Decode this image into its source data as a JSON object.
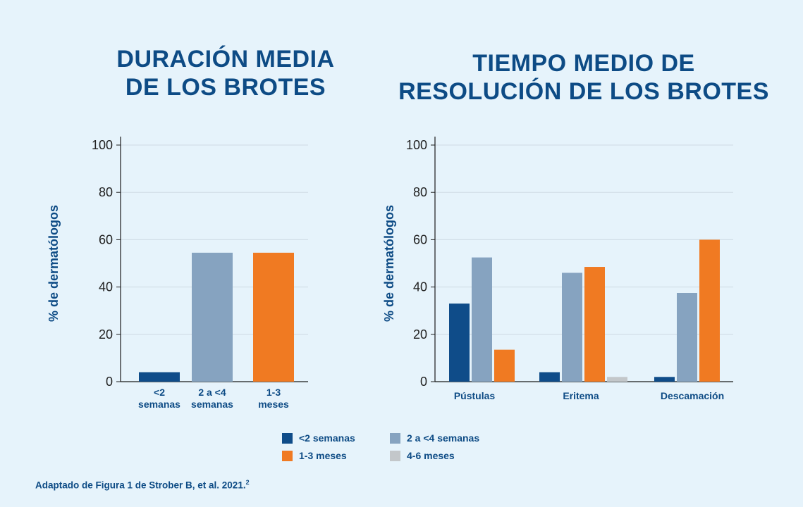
{
  "colors": {
    "background": "#e6f3fb",
    "text": "#0d4b85",
    "series": [
      "#0f4c89",
      "#86a3c0",
      "#f07a22",
      "#c3c7ca"
    ],
    "grid": "#cdd9e3",
    "axis": "#1b1b1b"
  },
  "titles": {
    "left_line1": "DURACIÓN MEDIA",
    "left_line2": "DE LOS BROTES",
    "right_line1": "TIEMPO MEDIO DE",
    "right_line2": "RESOLUCIÓN DE LOS BROTES"
  },
  "chart_data": [
    {
      "type": "bar",
      "title": "DURACIÓN MEDIA DE LOS BROTES",
      "ylabel": "% de dermatólogos",
      "ylim": [
        0,
        100
      ],
      "yticks": [
        "0",
        "20",
        "40",
        "60",
        "80",
        "100"
      ],
      "grid": true,
      "categories": [
        [
          "<2",
          "semanas"
        ],
        [
          "2 a <4",
          "semanas"
        ],
        [
          "1-3",
          "meses"
        ]
      ],
      "values": [
        4,
        54.5,
        54.5
      ]
    },
    {
      "type": "bar",
      "title": "TIEMPO MEDIO DE RESOLUCIÓN DE LOS BROTES",
      "ylabel": "% de dermatólogos",
      "ylim": [
        0,
        100
      ],
      "yticks": [
        "0",
        "20",
        "40",
        "60",
        "80",
        "100"
      ],
      "grid": true,
      "categories": [
        "Pústulas",
        "Eritema",
        "Descamación"
      ],
      "series": [
        {
          "name": "<2 semanas",
          "values": [
            33,
            4,
            2
          ]
        },
        {
          "name": "2 a <4 semanas",
          "values": [
            52.5,
            46,
            37.5
          ]
        },
        {
          "name": "1-3 meses",
          "values": [
            13.5,
            48.5,
            60
          ]
        },
        {
          "name": "4-6 meses",
          "values": [
            0,
            2,
            0
          ]
        }
      ]
    }
  ],
  "legend": {
    "placement": "bottom-center",
    "items": [
      "<2 semanas",
      "2 a <4 semanas",
      "1-3 meses",
      "4-6 meses"
    ]
  },
  "footnote": {
    "text": "Adaptado de Figura 1 de Strober B, et al. 2021.",
    "superscript": "2"
  }
}
